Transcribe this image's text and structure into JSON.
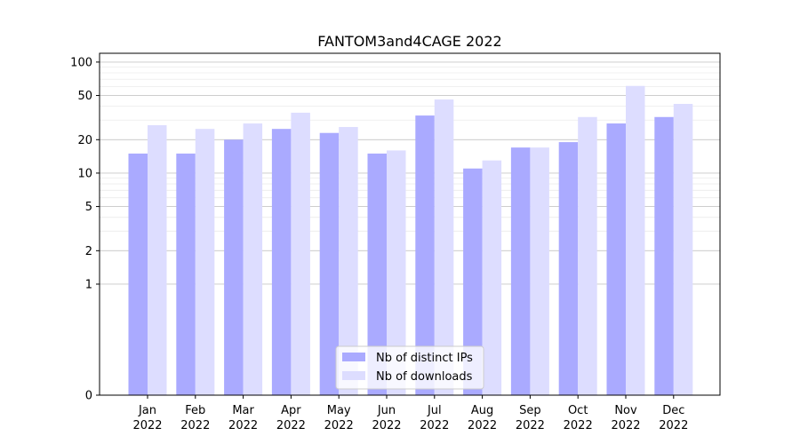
{
  "chart_data": {
    "type": "bar",
    "title": "FANTOM3and4CAGE 2022",
    "xlabel": "",
    "ylabel": "",
    "yscale": "symlog",
    "y_ticks": [
      0,
      1,
      2,
      5,
      10,
      20,
      50,
      100
    ],
    "y_tick_labels": [
      "0",
      "1",
      "2",
      "5",
      "10",
      "20",
      "50",
      "100"
    ],
    "ylim": [
      0,
      120
    ],
    "grid": true,
    "legend_position": "bottom-center",
    "categories": [
      [
        "Jan",
        "2022"
      ],
      [
        "Feb",
        "2022"
      ],
      [
        "Mar",
        "2022"
      ],
      [
        "Apr",
        "2022"
      ],
      [
        "May",
        "2022"
      ],
      [
        "Jun",
        "2022"
      ],
      [
        "Jul",
        "2022"
      ],
      [
        "Aug",
        "2022"
      ],
      [
        "Sep",
        "2022"
      ],
      [
        "Oct",
        "2022"
      ],
      [
        "Nov",
        "2022"
      ],
      [
        "Dec",
        "2022"
      ]
    ],
    "series": [
      {
        "name": "Nb of distinct IPs",
        "color": "#aaaaff",
        "values": [
          15,
          15,
          20,
          25,
          23,
          15,
          33,
          11,
          17,
          19,
          28,
          32
        ]
      },
      {
        "name": "Nb of downloads",
        "color": "#ddddff",
        "values": [
          27,
          25,
          28,
          35,
          26,
          16,
          46,
          13,
          17,
          32,
          61,
          42
        ]
      }
    ]
  }
}
